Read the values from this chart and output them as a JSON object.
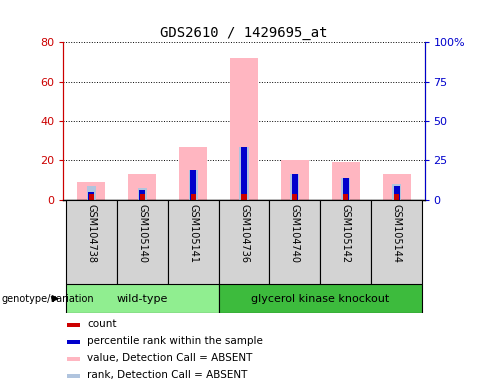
{
  "title": "GDS2610 / 1429695_at",
  "samples": [
    "GSM104738",
    "GSM105140",
    "GSM105141",
    "GSM104736",
    "GSM104740",
    "GSM105142",
    "GSM105144"
  ],
  "group_labels": [
    "wild-type",
    "glycerol kinase knockout"
  ],
  "wt_indices": [
    0,
    1,
    2
  ],
  "gk_indices": [
    3,
    4,
    5,
    6
  ],
  "count_values": [
    3,
    3,
    3,
    3,
    3,
    3,
    3
  ],
  "percentile_rank_values": [
    4,
    5,
    15,
    27,
    13,
    11,
    7
  ],
  "absent_value_values": [
    9,
    13,
    27,
    72,
    20,
    19,
    13
  ],
  "absent_rank_values": [
    7,
    6,
    15,
    27,
    13,
    11,
    8
  ],
  "left_ylim": [
    0,
    80
  ],
  "right_ylim": [
    0,
    100
  ],
  "left_yticks": [
    0,
    20,
    40,
    60,
    80
  ],
  "right_yticks": [
    0,
    25,
    50,
    75,
    100
  ],
  "left_tick_labels": [
    "0",
    "20",
    "40",
    "60",
    "80"
  ],
  "right_tick_labels": [
    "0",
    "25",
    "50",
    "75",
    "100%"
  ],
  "count_color": "#cc0000",
  "percentile_color": "#0000cc",
  "absent_value_color": "#ffb6c1",
  "absent_rank_color": "#b0c4de",
  "bg_color": "#d3d3d3",
  "wt_color": "#90ee90",
  "gk_color": "#3dbb3d",
  "legend_entries": [
    {
      "label": "count",
      "color": "#cc0000"
    },
    {
      "label": "percentile rank within the sample",
      "color": "#0000cc"
    },
    {
      "label": "value, Detection Call = ABSENT",
      "color": "#ffb6c1"
    },
    {
      "label": "rank, Detection Call = ABSENT",
      "color": "#b0c4de"
    }
  ],
  "genotype_label": "genotype/variation",
  "left_axis_color": "#cc0000",
  "right_axis_color": "#0000cc"
}
